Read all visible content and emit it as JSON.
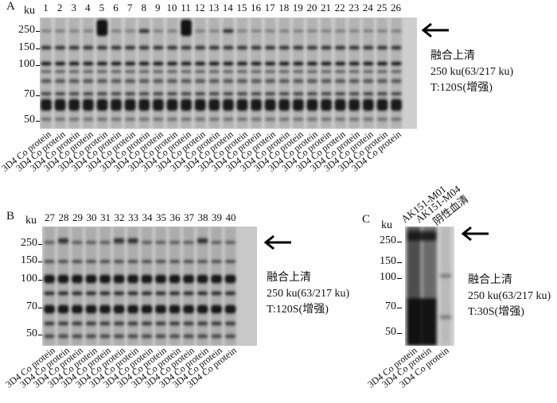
{
  "panels": {
    "A": {
      "letter": "A",
      "ku": "ku",
      "mw": [
        "250",
        "150",
        "100",
        "70",
        "50"
      ],
      "lanes": [
        "1",
        "2",
        "3",
        "4",
        "5",
        "6",
        "7",
        "8",
        "9",
        "10",
        "11",
        "12",
        "13",
        "14",
        "15",
        "16",
        "17",
        "18",
        "19",
        "20",
        "21",
        "22",
        "23",
        "24",
        "25",
        "26"
      ],
      "xlabel": "3D4 Co protein",
      "annotation": [
        "融合上清",
        "250 ku(63/217 ku)",
        "T:120S(增强)"
      ]
    },
    "B": {
      "letter": "B",
      "ku": "ku",
      "mw": [
        "250",
        "150",
        "100",
        "70",
        "50"
      ],
      "lanes": [
        "27",
        "28",
        "29",
        "30",
        "31",
        "32",
        "33",
        "34",
        "35",
        "36",
        "37",
        "38",
        "39",
        "40"
      ],
      "xlabel": "3D4 Co protein",
      "annotation": [
        "融合上清",
        "250 ku(63/217 ku)",
        "T:120S(增强)"
      ]
    },
    "C": {
      "letter": "C",
      "ku": "ku",
      "mw": [
        "250",
        "150",
        "100",
        "70",
        "50"
      ],
      "samples": [
        "AK151-M01",
        "AK151-M04",
        "阴性血清"
      ],
      "xlabel": "3D4 Co protein",
      "annotation": [
        "融合上清",
        "250 ku(63/217 ku)",
        "T:30S(增强)"
      ]
    }
  }
}
